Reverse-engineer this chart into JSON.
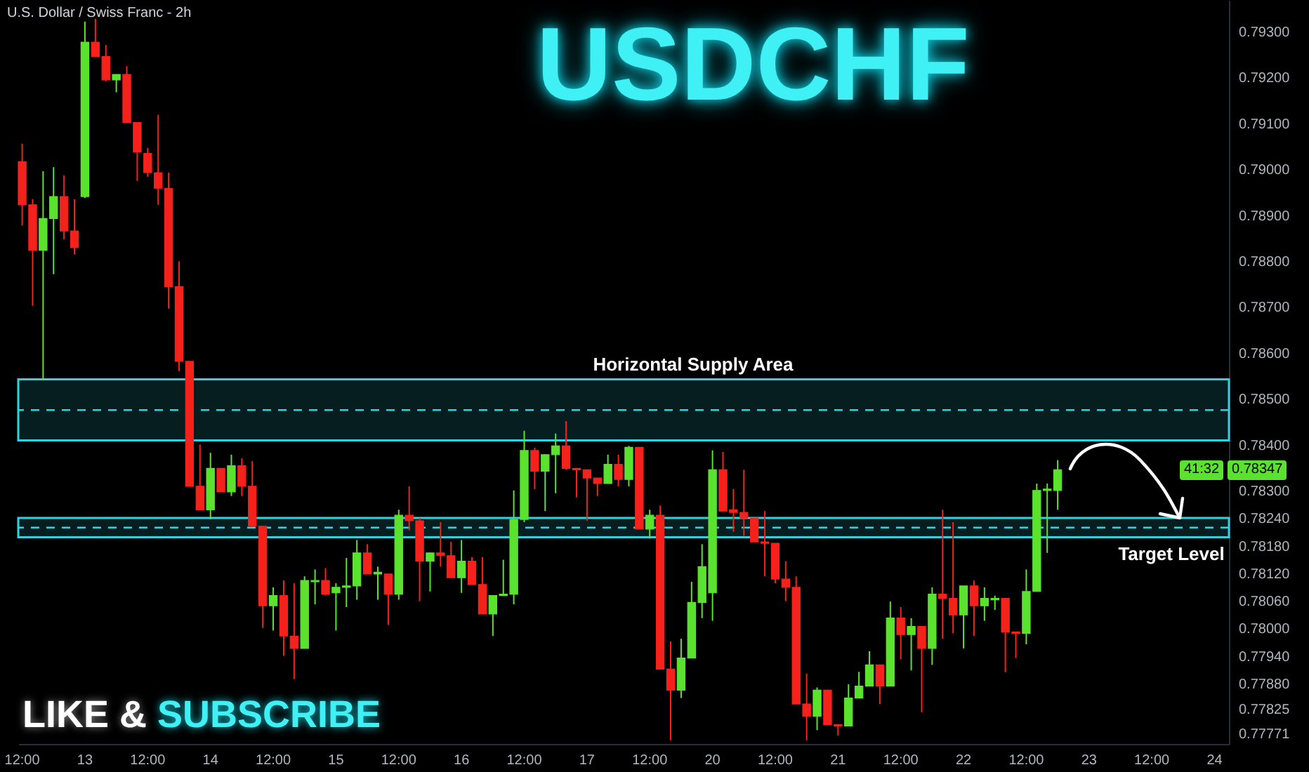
{
  "chart_data": {
    "type": "candlestick",
    "title": "USDCHF",
    "subtitle": "U.S. Dollar / Swiss Franc - 2h",
    "categories": [
      "12:00",
      null,
      null,
      null,
      null,
      null,
      "13",
      null,
      null,
      null,
      null,
      null,
      "12:00",
      null,
      null,
      null,
      null,
      null,
      "14",
      null,
      null,
      null,
      null,
      null,
      "12:00",
      null,
      null,
      null,
      null,
      null,
      "15",
      null,
      null,
      null,
      null,
      null,
      "12:00",
      null,
      null,
      null,
      null,
      null,
      "16",
      null,
      null,
      null,
      null,
      null,
      "12:00",
      null,
      null,
      null,
      null,
      null,
      "17",
      null,
      null,
      null,
      null,
      null,
      "12:00",
      null,
      null,
      null,
      null,
      null,
      "20",
      null,
      null,
      null,
      null,
      null,
      "12:00",
      null,
      null,
      null,
      null,
      null,
      "21",
      null,
      null,
      null,
      null,
      null,
      "12:00",
      null,
      null,
      null,
      null,
      null,
      "22",
      null,
      null,
      null,
      null,
      null,
      "12:00",
      null,
      null,
      null,
      null,
      null,
      "23",
      null,
      null,
      null,
      null,
      null,
      "12:00",
      null,
      null,
      null,
      null,
      null,
      "24",
      null
    ],
    "ohlc": [
      [
        0.79018,
        0.79057,
        0.78879,
        0.78924
      ],
      [
        0.78924,
        0.78936,
        0.78704,
        0.78825
      ],
      [
        0.78825,
        0.78997,
        0.78544,
        0.78894
      ],
      [
        0.78894,
        0.79006,
        0.78773,
        0.78942
      ],
      [
        0.78942,
        0.78988,
        0.78849,
        0.78867
      ],
      [
        0.78867,
        0.78936,
        0.78816,
        0.78831
      ],
      [
        0.78942,
        0.79323,
        0.78939,
        0.79278
      ],
      [
        0.79278,
        0.79329,
        0.79247,
        0.79247
      ],
      [
        0.79247,
        0.79272,
        0.79193,
        0.79196
      ],
      [
        0.79196,
        0.79208,
        0.79169,
        0.79208
      ],
      [
        0.79208,
        0.79226,
        0.79103,
        0.79103
      ],
      [
        0.79103,
        0.79103,
        0.78976,
        0.79039
      ],
      [
        0.79036,
        0.79048,
        0.78985,
        0.78994
      ],
      [
        0.78994,
        0.7912,
        0.78924,
        0.7896
      ],
      [
        0.7896,
        0.78994,
        0.78698,
        0.78746
      ],
      [
        0.78746,
        0.78801,
        0.78562,
        0.78583
      ],
      [
        0.78583,
        0.78583,
        0.78311,
        0.78311
      ],
      [
        0.78311,
        0.78402,
        0.7826,
        0.7826
      ],
      [
        0.7826,
        0.78384,
        0.78239,
        0.7835
      ],
      [
        0.7835,
        0.7835,
        0.78299,
        0.78299
      ],
      [
        0.78299,
        0.7838,
        0.7829,
        0.78356
      ],
      [
        0.78356,
        0.78372,
        0.7829,
        0.78311
      ],
      [
        0.78311,
        0.78366,
        0.78224,
        0.78224
      ],
      [
        0.78224,
        0.78224,
        0.78003,
        0.78051
      ],
      [
        0.78051,
        0.78091,
        0.77997,
        0.78073
      ],
      [
        0.78073,
        0.78106,
        0.77942,
        0.77985
      ],
      [
        0.77985,
        0.781,
        0.77891,
        0.77958
      ],
      [
        0.77958,
        0.78115,
        0.77958,
        0.78106
      ],
      [
        0.78103,
        0.7813,
        0.78054,
        0.78106
      ],
      [
        0.78106,
        0.78133,
        0.78073,
        0.78076
      ],
      [
        0.78079,
        0.781,
        0.77997,
        0.78091
      ],
      [
        0.78091,
        0.78155,
        0.78048,
        0.78094
      ],
      [
        0.78094,
        0.78194,
        0.78064,
        0.78166
      ],
      [
        0.78166,
        0.78185,
        0.7812,
        0.7812
      ],
      [
        0.7812,
        0.78136,
        0.78064,
        0.78124
      ],
      [
        0.7812,
        0.7812,
        0.78009,
        0.78076
      ],
      [
        0.78076,
        0.7826,
        0.78064,
        0.78248
      ],
      [
        0.78248,
        0.78311,
        0.78215,
        0.78236
      ],
      [
        0.78236,
        0.78242,
        0.78061,
        0.78148
      ],
      [
        0.78148,
        0.78166,
        0.78082,
        0.78166
      ],
      [
        0.78166,
        0.78233,
        0.78136,
        0.7816
      ],
      [
        0.7816,
        0.7819,
        0.78112,
        0.78112
      ],
      [
        0.78112,
        0.78194,
        0.78079,
        0.78148
      ],
      [
        0.78148,
        0.78157,
        0.78097,
        0.78097
      ],
      [
        0.78097,
        0.78157,
        0.78033,
        0.78033
      ],
      [
        0.78033,
        0.78073,
        0.77985,
        0.78073
      ],
      [
        0.78073,
        0.78151,
        0.78073,
        0.78076
      ],
      [
        0.78076,
        0.78302,
        0.78054,
        0.78239
      ],
      [
        0.78239,
        0.78432,
        0.78233,
        0.78389
      ],
      [
        0.78389,
        0.78395,
        0.78305,
        0.78344
      ],
      [
        0.78344,
        0.7838,
        0.78257,
        0.7838
      ],
      [
        0.7838,
        0.78426,
        0.78296,
        0.78399
      ],
      [
        0.78399,
        0.78453,
        0.78347,
        0.7835
      ],
      [
        0.7835,
        0.7835,
        0.78287,
        0.78347
      ],
      [
        0.78347,
        0.78347,
        0.78236,
        0.78329
      ],
      [
        0.78329,
        0.78329,
        0.7829,
        0.78317
      ],
      [
        0.78317,
        0.7838,
        0.78317,
        0.78359
      ],
      [
        0.78359,
        0.7838,
        0.78311,
        0.78326
      ],
      [
        0.78326,
        0.78399,
        0.78311,
        0.78396
      ],
      [
        0.78396,
        0.78396,
        0.78218,
        0.78218
      ],
      [
        0.78218,
        0.7826,
        0.78197,
        0.78248
      ],
      [
        0.78248,
        0.78269,
        0.77913,
        0.77913
      ],
      [
        0.77913,
        0.77973,
        0.77758,
        0.77867
      ],
      [
        0.77867,
        0.77979,
        0.7785,
        0.77937
      ],
      [
        0.77937,
        0.78103,
        0.77937,
        0.78058
      ],
      [
        0.78058,
        0.78185,
        0.78024,
        0.78136
      ],
      [
        0.78079,
        0.78389,
        0.78018,
        0.78347
      ],
      [
        0.78347,
        0.78386,
        0.78257,
        0.78257
      ],
      [
        0.7826,
        0.78305,
        0.78212,
        0.78254
      ],
      [
        0.78254,
        0.78347,
        0.78203,
        0.78242
      ],
      [
        0.78242,
        0.78242,
        0.7819,
        0.7819
      ],
      [
        0.7819,
        0.78257,
        0.78115,
        0.78187
      ],
      [
        0.78187,
        0.78187,
        0.781,
        0.78109
      ],
      [
        0.78109,
        0.78148,
        0.78061,
        0.78091
      ],
      [
        0.78091,
        0.78115,
        0.77837,
        0.77837
      ],
      [
        0.77837,
        0.77903,
        0.77758,
        0.7781
      ],
      [
        0.7781,
        0.77873,
        0.7778,
        0.77867
      ],
      [
        0.77867,
        0.77867,
        0.77792,
        0.77792
      ],
      [
        0.77792,
        0.77792,
        0.77768,
        0.77789
      ],
      [
        0.77789,
        0.7788,
        0.77789,
        0.7785
      ],
      [
        0.7785,
        0.77907,
        0.7785,
        0.77876
      ],
      [
        0.77876,
        0.77952,
        0.77876,
        0.77922
      ],
      [
        0.77922,
        0.77922,
        0.77837,
        0.77876
      ],
      [
        0.77876,
        0.7806,
        0.77876,
        0.78024
      ],
      [
        0.78024,
        0.78048,
        0.77934,
        0.77988
      ],
      [
        0.77988,
        0.78024,
        0.7791,
        0.78006
      ],
      [
        0.78006,
        0.78006,
        0.77819,
        0.77958
      ],
      [
        0.77958,
        0.78091,
        0.77922,
        0.78076
      ],
      [
        0.78076,
        0.7826,
        0.77979,
        0.78067
      ],
      [
        0.78067,
        0.78233,
        0.77991,
        0.78031
      ],
      [
        0.78031,
        0.78094,
        0.77958,
        0.78094
      ],
      [
        0.78094,
        0.78106,
        0.77985,
        0.78051
      ],
      [
        0.78051,
        0.78091,
        0.78018,
        0.78067
      ],
      [
        0.78064,
        0.78073,
        0.78042,
        0.78067
      ],
      [
        0.78067,
        0.78067,
        0.77906,
        0.77994
      ],
      [
        0.77994,
        0.77994,
        0.77937,
        0.77991
      ],
      [
        0.77991,
        0.7813,
        0.77967,
        0.78082
      ],
      [
        0.78082,
        0.78317,
        0.78082,
        0.78302
      ],
      [
        0.78302,
        0.78317,
        0.78166,
        0.78305
      ],
      [
        0.78302,
        0.78368,
        0.7826,
        0.78347
      ],
      null,
      null,
      null,
      null,
      null,
      null,
      null,
      null,
      null,
      null,
      null,
      null,
      null,
      null,
      null,
      null
    ],
    "colors": [
      "#f5221c",
      "#f5221c",
      "#5be22f",
      "#5be22f",
      "#f5221c",
      "#f5221c",
      "#5be22f",
      "#f5221c",
      "#f5221c",
      "#5be22f",
      "#f5221c",
      "#f5221c",
      "#f5221c",
      "#f5221c",
      "#f5221c",
      "#f5221c",
      "#f5221c",
      "#f5221c",
      "#5be22f",
      "#f5221c",
      "#5be22f",
      "#f5221c",
      "#f5221c",
      "#f5221c",
      "#5be22f",
      "#f5221c",
      "#f5221c",
      "#5be22f",
      "#5be22f",
      "#f5221c",
      "#5be22f",
      "#5be22f",
      "#5be22f",
      "#f5221c",
      "#5be22f",
      "#f5221c",
      "#5be22f",
      "#f5221c",
      "#f5221c",
      "#5be22f",
      "#f5221c",
      "#f5221c",
      "#5be22f",
      "#f5221c",
      "#f5221c",
      "#5be22f",
      "#5be22f",
      "#5be22f",
      "#5be22f",
      "#f5221c",
      "#5be22f",
      "#5be22f",
      "#f5221c",
      "#f5221c",
      "#f5221c",
      "#f5221c",
      "#5be22f",
      "#f5221c",
      "#5be22f",
      "#f5221c",
      "#5be22f",
      "#f5221c",
      "#f5221c",
      "#5be22f",
      "#5be22f",
      "#5be22f",
      "#5be22f",
      "#f5221c",
      "#f5221c",
      "#f5221c",
      "#f5221c",
      "#f5221c",
      "#f5221c",
      "#f5221c",
      "#f5221c",
      "#f5221c",
      "#5be22f",
      "#f5221c",
      "#f5221c",
      "#5be22f",
      "#5be22f",
      "#5be22f",
      "#f5221c",
      "#5be22f",
      "#f5221c",
      "#5be22f",
      "#f5221c",
      "#5be22f",
      "#f5221c",
      "#f5221c",
      "#5be22f",
      "#f5221c",
      "#5be22f",
      "#5be22f",
      "#f5221c",
      "#f5221c",
      "#5be22f",
      "#5be22f",
      "#5be22f",
      "#5be22f",
      null,
      null,
      null,
      null,
      null,
      null,
      null,
      null,
      null,
      null,
      null,
      null,
      null,
      null,
      null,
      null
    ],
    "ylim": [
      0.7775,
      0.7937
    ],
    "yticks": [
      {
        "value": 0.793,
        "label": "0.79300"
      },
      {
        "value": 0.792,
        "label": "0.79200"
      },
      {
        "value": 0.791,
        "label": "0.79100"
      },
      {
        "value": 0.79,
        "label": "0.79000"
      },
      {
        "value": 0.789,
        "label": "0.78900"
      },
      {
        "value": 0.788,
        "label": "0.78800"
      },
      {
        "value": 0.787,
        "label": "0.78700"
      },
      {
        "value": 0.786,
        "label": "0.78600"
      },
      {
        "value": 0.785,
        "label": "0.78500"
      },
      {
        "value": 0.784,
        "label": "0.78400"
      },
      {
        "value": 0.783,
        "label": "0.78300"
      },
      {
        "value": 0.7824,
        "label": "0.78240"
      },
      {
        "value": 0.7818,
        "label": "0.78180"
      },
      {
        "value": 0.7812,
        "label": "0.78120"
      },
      {
        "value": 0.7806,
        "label": "0.78060"
      },
      {
        "value": 0.78,
        "label": "0.78000"
      },
      {
        "value": 0.7794,
        "label": "0.77940"
      },
      {
        "value": 0.7788,
        "label": "0.77880"
      },
      0.77825,
      0.77771
    ],
    "bands": [
      {
        "axis": "y",
        "from": 0.78411,
        "to": 0.78544,
        "label": "Horizontal Supply Area",
        "color": "#2ed3df"
      },
      {
        "axis": "y",
        "from": 0.782,
        "to": 0.78242,
        "label": "Target Level",
        "color": "#2ed3df"
      }
    ],
    "ref_lines": [
      {
        "axis": "y",
        "value": 0.78477,
        "color": "#2ed3df",
        "line_style": "dashed"
      },
      {
        "axis": "y",
        "value": 0.78221,
        "color": "#2ed3df",
        "line_style": "dashed"
      }
    ],
    "annotations": [
      "LIKE & SUBSCRIBE",
      {
        "text": "0.78347",
        "y": 0.78347
      },
      "41:32"
    ]
  }
}
